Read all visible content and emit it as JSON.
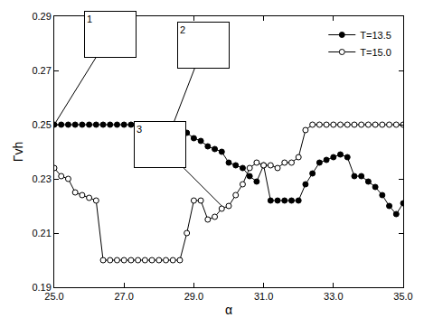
{
  "chart_data": {
    "type": "line",
    "x_label": "α",
    "y_label": "Γvh",
    "x": [
      25.0,
      25.2,
      25.4,
      25.6,
      25.8,
      26.0,
      26.2,
      26.4,
      26.6,
      26.8,
      27.0,
      27.2,
      27.4,
      27.6,
      27.8,
      28.0,
      28.2,
      28.4,
      28.6,
      28.8,
      29.0,
      29.2,
      29.4,
      29.6,
      29.8,
      30.0,
      30.2,
      30.4,
      30.6,
      30.8,
      31.0,
      31.2,
      31.4,
      31.6,
      31.8,
      32.0,
      32.2,
      32.4,
      32.6,
      32.8,
      33.0,
      33.2,
      33.4,
      33.6,
      33.8,
      34.0,
      34.2,
      34.4,
      34.6,
      34.8,
      35.0
    ],
    "series": [
      {
        "name": "T=13.5",
        "color": "#000000",
        "marker": "filled-circle",
        "line_style": "solid",
        "values": [
          0.25,
          0.25,
          0.25,
          0.25,
          0.25,
          0.25,
          0.25,
          0.25,
          0.25,
          0.25,
          0.25,
          0.25,
          0.25,
          0.25,
          0.25,
          0.25,
          0.25,
          0.25,
          0.249,
          0.247,
          0.245,
          0.244,
          0.242,
          0.241,
          0.24,
          0.236,
          0.235,
          0.234,
          0.231,
          0.229,
          0.235,
          0.222,
          0.222,
          0.222,
          0.222,
          0.222,
          0.228,
          0.232,
          0.236,
          0.237,
          0.238,
          0.239,
          0.238,
          0.231,
          0.231,
          0.229,
          0.227,
          0.224,
          0.22,
          0.217,
          0.221
        ]
      },
      {
        "name": "T=15.0",
        "color": "#000000",
        "marker": "open-circle",
        "line_style": "solid",
        "values": [
          0.234,
          0.231,
          0.23,
          0.225,
          0.224,
          0.223,
          0.222,
          0.2,
          0.2,
          0.2,
          0.2,
          0.2,
          0.2,
          0.2,
          0.2,
          0.2,
          0.2,
          0.2,
          0.2,
          0.21,
          0.222,
          0.222,
          0.215,
          0.216,
          0.219,
          0.22,
          0.224,
          0.228,
          0.234,
          0.236,
          0.235,
          0.235,
          0.234,
          0.236,
          0.236,
          0.238,
          0.248,
          0.25,
          0.25,
          0.25,
          0.25,
          0.25,
          0.25,
          0.25,
          0.25,
          0.25,
          0.25,
          0.25,
          0.25,
          0.25,
          0.25
        ]
      }
    ],
    "xlim": [
      25.0,
      35.0
    ],
    "xticks": [
      {
        "value": 25,
        "label": "25.0"
      },
      {
        "value": 27,
        "label": "27.0"
      },
      {
        "value": 29,
        "label": "29.0"
      },
      {
        "value": 31,
        "label": "31.0"
      },
      {
        "value": 33,
        "label": "33.0"
      },
      {
        "value": 35,
        "label": "35.0"
      }
    ],
    "ylim": [
      0.19,
      0.29
    ],
    "yticks": [
      0.19,
      0.21,
      0.23,
      0.25,
      0.27,
      0.29
    ],
    "grid": false,
    "legend": "upper right",
    "annotations": [
      {
        "text": "1",
        "x": 25.0,
        "y": 0.25
      },
      {
        "text": "2",
        "x": 28.4,
        "y": 0.25
      },
      {
        "text": "3",
        "x": 29.8,
        "y": 0.22
      }
    ]
  }
}
